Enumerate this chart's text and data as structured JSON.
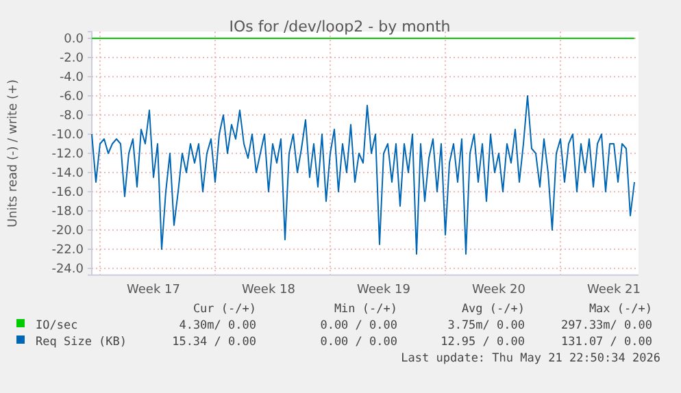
{
  "chart_data": {
    "type": "line",
    "title": "IOs for /dev/loop2 - by month",
    "ylabel": "Units read (-) / write (+)",
    "categories": [
      null,
      null,
      null,
      null,
      null,
      null,
      null,
      null,
      null,
      null,
      null,
      null,
      null,
      null,
      null,
      "Week 17",
      null,
      null,
      null,
      null,
      null,
      null,
      null,
      null,
      null,
      null,
      null,
      null,
      null,
      null,
      null,
      null,
      null,
      null,
      null,
      null,
      null,
      null,
      null,
      null,
      null,
      null,
      null,
      "Week 18",
      null,
      null,
      null,
      null,
      null,
      null,
      null,
      null,
      null,
      null,
      null,
      null,
      null,
      null,
      null,
      null,
      null,
      null,
      null,
      null,
      null,
      null,
      null,
      null,
      null,
      null,
      null,
      "Week 19",
      null,
      null,
      null,
      null,
      null,
      null,
      null,
      null,
      null,
      null,
      null,
      null,
      null,
      null,
      null,
      null,
      null,
      null,
      null,
      null,
      null,
      null,
      null,
      null,
      null,
      null,
      null,
      "Week 20",
      null,
      null,
      null,
      null,
      null,
      null,
      null,
      null,
      null,
      null,
      null,
      null,
      null,
      null,
      null,
      null,
      null,
      null,
      null,
      null,
      null,
      null,
      null,
      null,
      null,
      null,
      null,
      "Week 21",
      null,
      null,
      null,
      null,
      null
    ],
    "ylim": [
      -24.7,
      0.7
    ],
    "yticks": [
      {
        "value": 0,
        "label": "0.0"
      },
      {
        "value": -2,
        "label": "-2.0"
      },
      {
        "value": -4,
        "label": "-4.0"
      },
      {
        "value": -6,
        "label": "-6.0"
      },
      {
        "value": -8,
        "label": "-8.0"
      },
      {
        "value": -10,
        "label": "-10.0"
      },
      {
        "value": -12,
        "label": "-12.0"
      },
      {
        "value": -14,
        "label": "-14.0"
      },
      {
        "value": -16,
        "label": "-16.0"
      },
      {
        "value": -18,
        "label": "-18.0"
      },
      {
        "value": -20,
        "label": "-20.0"
      },
      {
        "value": -22,
        "label": "-22.0"
      },
      {
        "value": -24,
        "label": "-24.0"
      }
    ],
    "grid": true,
    "legend": "bottom",
    "series": [
      {
        "name": "IO/sec",
        "color": "#00cc00",
        "values": [
          0,
          0,
          0,
          0,
          0,
          0,
          0,
          0,
          0,
          0,
          0,
          0,
          0,
          0,
          0,
          0,
          0,
          0,
          0,
          0,
          0,
          0,
          0,
          0,
          0,
          0,
          0,
          0,
          0,
          0,
          0,
          0,
          0,
          0,
          0,
          0,
          0,
          0,
          0,
          0,
          0,
          0,
          0,
          0,
          0,
          0,
          0,
          0,
          0,
          0,
          0,
          0,
          0,
          0,
          0,
          0,
          0,
          0,
          0,
          0,
          0,
          0,
          0,
          0,
          0,
          0,
          0,
          0,
          0,
          0,
          0,
          0,
          0,
          0,
          0,
          0,
          0,
          0,
          0,
          0,
          0,
          0,
          0,
          0,
          0,
          0,
          0,
          0,
          0,
          0,
          0,
          0,
          0,
          0,
          0,
          0,
          0,
          0,
          0,
          0,
          0,
          0,
          0,
          0,
          0,
          0,
          0,
          0,
          0,
          0,
          0,
          0,
          0,
          0,
          0,
          0,
          0,
          0,
          0,
          0,
          0,
          0,
          0,
          0,
          0,
          0,
          0,
          0,
          0,
          0,
          0,
          0,
          0
        ]
      },
      {
        "name": "Req Size (KB)",
        "color": "#0066b3",
        "values": [
          -10,
          -15,
          -11,
          -10.5,
          -12,
          -11,
          -10.5,
          -11,
          -16.5,
          -12,
          -10.5,
          -15.5,
          -9.5,
          -11,
          -7.5,
          -14.5,
          -11,
          -22,
          -16,
          -12,
          -19.5,
          -16,
          -12,
          -14,
          -11,
          -13,
          -11,
          -16,
          -12,
          -10.5,
          -15,
          -10,
          -8,
          -12,
          -9,
          -10.5,
          -7.5,
          -11,
          -12.5,
          -10,
          -14,
          -12,
          -10,
          -16,
          -11,
          -13,
          -10.5,
          -21,
          -12,
          -10,
          -14,
          -11.5,
          -8.5,
          -14.5,
          -11,
          -15.5,
          -10,
          -17,
          -12,
          -9.5,
          -16,
          -11,
          -14,
          -9,
          -15,
          -12,
          -13,
          -7,
          -12,
          -10,
          -21.5,
          -12,
          -11,
          -15,
          -11,
          -17.5,
          -11,
          -14,
          -10,
          -22.5,
          -11,
          -17,
          -12.5,
          -10.5,
          -16,
          -11,
          -20.5,
          -13,
          -11,
          -15,
          -10.5,
          -22.5,
          -12,
          -10,
          -15,
          -11,
          -17,
          -10,
          -14,
          -12,
          -16,
          -11,
          -13,
          -9.5,
          -15,
          -11,
          -6,
          -11.5,
          -12,
          -15.5,
          -10.5,
          -14,
          -20,
          -12,
          -10.5,
          -15,
          -11,
          -10,
          -16,
          -11,
          -14,
          -10.5,
          -15.5,
          -11,
          -10,
          -16,
          -11,
          -11,
          -15,
          -11,
          -11.5,
          -18.5,
          -15
        ]
      }
    ],
    "annotations": [
      "Cur (-/+)",
      "Min (-/+)",
      "Avg (-/+)",
      "Max (-/+)",
      "4.30m/ 0.00",
      "0.00 / 0.00",
      "3.75m/ 0.00",
      "297.33m/ 0.00",
      "15.34 / 0.00",
      "0.00 / 0.00",
      "12.95 / 0.00",
      "131.07 / 0.00",
      "Last update: Thu May 21 22:50:34 2026"
    ]
  }
}
